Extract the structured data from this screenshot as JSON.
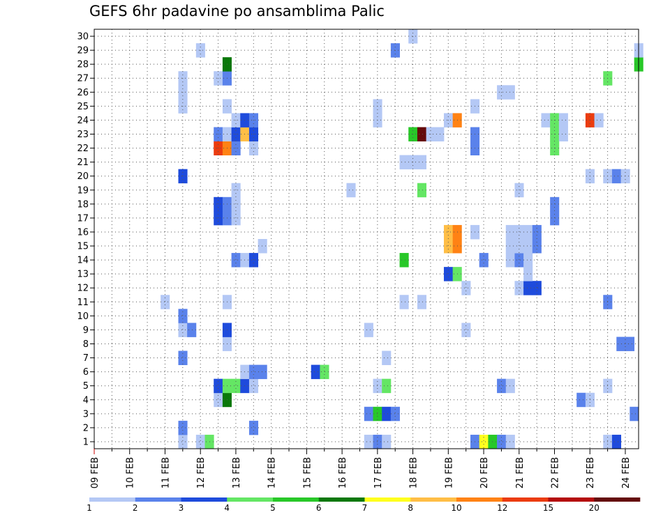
{
  "chart_data": {
    "type": "heatmap",
    "title": "GEFS 6hr padavine po ansamblima Palic",
    "xlabel": "",
    "ylabel": "",
    "x_ticks": [
      "09 FEB",
      "10 FEB",
      "11 FEB",
      "12 FEB",
      "13 FEB",
      "14 FEB",
      "15 FEB",
      "16 FEB",
      "17 FEB",
      "18 FEB",
      "19 FEB",
      "20 FEB",
      "21 FEB",
      "22 FEB",
      "23 FEB",
      "24 FEB"
    ],
    "x_range_days": [
      0,
      15.375
    ],
    "time_step_hours": 6,
    "y_members": [
      1,
      2,
      3,
      4,
      5,
      6,
      7,
      8,
      9,
      10,
      11,
      12,
      13,
      14,
      15,
      16,
      17,
      18,
      19,
      20,
      21,
      22,
      23,
      24,
      25,
      26,
      27,
      28,
      29,
      30
    ],
    "grid": true,
    "legend": {
      "position": "bottom",
      "labels": [
        "1",
        "2",
        "3",
        "4",
        "5",
        "6",
        "7",
        "8",
        "10",
        "12",
        "15",
        "20"
      ],
      "colors": [
        "#b4c8f5",
        "#5a82eb",
        "#1e4bdc",
        "#64e664",
        "#28c828",
        "#0a780a",
        "#ffff1e",
        "#ffbe46",
        "#ff8214",
        "#eb3c0f",
        "#b40a0a",
        "#640a0a"
      ]
    },
    "cells": [
      {
        "member": 1,
        "t": [
          [
            2.5,
            1
          ],
          [
            3,
            1
          ],
          [
            3.25,
            4
          ],
          [
            7.75,
            1
          ],
          [
            8,
            2
          ],
          [
            8.25,
            1
          ],
          [
            10.75,
            2
          ],
          [
            11,
            7
          ],
          [
            11.25,
            5
          ],
          [
            11.5,
            2
          ],
          [
            11.75,
            1
          ],
          [
            14.5,
            1
          ],
          [
            14.75,
            3
          ]
        ]
      },
      {
        "member": 2,
        "t": [
          [
            2.5,
            2
          ],
          [
            4.5,
            2
          ]
        ]
      },
      {
        "member": 3,
        "t": [
          [
            7.75,
            2
          ],
          [
            8,
            5
          ],
          [
            8.25,
            3
          ],
          [
            8.5,
            2
          ],
          [
            15.25,
            2
          ]
        ]
      },
      {
        "member": 4,
        "t": [
          [
            3.5,
            1
          ],
          [
            3.75,
            6
          ],
          [
            13.75,
            2
          ],
          [
            14,
            1
          ]
        ]
      },
      {
        "member": 5,
        "t": [
          [
            3.5,
            3
          ],
          [
            3.75,
            4
          ],
          [
            4,
            4
          ],
          [
            4.25,
            3
          ],
          [
            4.5,
            1
          ],
          [
            8,
            1
          ],
          [
            8.25,
            4
          ],
          [
            11.5,
            2
          ],
          [
            11.75,
            1
          ],
          [
            14.5,
            1
          ]
        ]
      },
      {
        "member": 6,
        "t": [
          [
            4.25,
            1
          ],
          [
            4.5,
            2
          ],
          [
            4.75,
            2
          ],
          [
            6.25,
            3
          ],
          [
            6.5,
            4
          ]
        ]
      },
      {
        "member": 7,
        "t": [
          [
            2.5,
            2
          ],
          [
            8.25,
            1
          ]
        ]
      },
      {
        "member": 8,
        "t": [
          [
            3.75,
            1
          ],
          [
            14.875,
            2
          ],
          [
            15.125,
            2
          ]
        ]
      },
      {
        "member": 9,
        "t": [
          [
            2.5,
            1
          ],
          [
            2.75,
            2
          ],
          [
            3.75,
            3
          ],
          [
            7.75,
            1
          ],
          [
            10.5,
            1
          ]
        ]
      },
      {
        "member": 10,
        "t": [
          [
            2.5,
            2
          ]
        ]
      },
      {
        "member": 11,
        "t": [
          [
            2,
            1
          ],
          [
            3.75,
            1
          ],
          [
            8.75,
            1
          ],
          [
            9.25,
            1
          ],
          [
            14.5,
            2
          ]
        ]
      },
      {
        "member": 12,
        "t": [
          [
            10.5,
            1
          ],
          [
            12,
            1
          ],
          [
            12.25,
            3
          ],
          [
            12.5,
            3
          ]
        ]
      },
      {
        "member": 13,
        "t": [
          [
            10,
            3
          ],
          [
            10.25,
            4
          ],
          [
            12.25,
            1
          ]
        ]
      },
      {
        "member": 14,
        "t": [
          [
            4,
            2
          ],
          [
            4.25,
            1
          ],
          [
            4.5,
            3
          ],
          [
            8.75,
            5
          ],
          [
            11,
            2
          ],
          [
            11.75,
            1
          ],
          [
            12,
            2
          ],
          [
            12.25,
            1
          ]
        ]
      },
      {
        "member": 15,
        "t": [
          [
            4.75,
            1
          ],
          [
            10,
            8
          ],
          [
            10.25,
            9
          ],
          [
            11.75,
            1
          ],
          [
            12,
            1
          ],
          [
            12.25,
            1
          ],
          [
            12.5,
            2
          ]
        ]
      },
      {
        "member": 16,
        "t": [
          [
            10,
            8
          ],
          [
            10.25,
            9
          ],
          [
            10.75,
            1
          ],
          [
            11.75,
            1
          ],
          [
            12,
            1
          ],
          [
            12.25,
            1
          ],
          [
            12.5,
            2
          ]
        ]
      },
      {
        "member": 17,
        "t": [
          [
            3.5,
            3
          ],
          [
            3.75,
            2
          ],
          [
            4,
            1
          ],
          [
            13,
            2
          ]
        ]
      },
      {
        "member": 18,
        "t": [
          [
            3.5,
            3
          ],
          [
            3.75,
            2
          ],
          [
            4,
            1
          ],
          [
            13,
            2
          ]
        ]
      },
      {
        "member": 19,
        "t": [
          [
            4,
            1
          ],
          [
            7.25,
            1
          ],
          [
            9.25,
            4
          ],
          [
            12,
            1
          ]
        ]
      },
      {
        "member": 20,
        "t": [
          [
            2.5,
            3
          ],
          [
            14,
            1
          ],
          [
            14.5,
            1
          ],
          [
            14.75,
            2
          ],
          [
            15,
            1
          ]
        ]
      },
      {
        "member": 21,
        "t": [
          [
            8.75,
            1
          ],
          [
            9,
            1
          ],
          [
            9.25,
            1
          ]
        ]
      },
      {
        "member": 22,
        "t": [
          [
            3.5,
            10
          ],
          [
            3.75,
            9
          ],
          [
            4,
            2
          ],
          [
            4.5,
            1
          ],
          [
            10.75,
            2
          ],
          [
            13,
            4
          ]
        ]
      },
      {
        "member": 23,
        "t": [
          [
            3.5,
            2
          ],
          [
            3.75,
            1
          ],
          [
            4,
            3
          ],
          [
            4.25,
            8
          ],
          [
            4.5,
            3
          ],
          [
            9,
            5
          ],
          [
            9.25,
            12
          ],
          [
            9.5,
            1
          ],
          [
            9.75,
            1
          ],
          [
            10.75,
            2
          ],
          [
            13,
            4
          ],
          [
            13.25,
            1
          ]
        ]
      },
      {
        "member": 24,
        "t": [
          [
            4,
            1
          ],
          [
            4.25,
            3
          ],
          [
            4.5,
            2
          ],
          [
            8,
            1
          ],
          [
            10,
            1
          ],
          [
            10.25,
            9
          ],
          [
            12.75,
            1
          ],
          [
            13,
            4
          ],
          [
            13.25,
            1
          ],
          [
            14,
            10
          ],
          [
            14.25,
            1
          ]
        ]
      },
      {
        "member": 25,
        "t": [
          [
            2.5,
            1
          ],
          [
            3.75,
            1
          ],
          [
            8,
            1
          ],
          [
            10.75,
            1
          ]
        ]
      },
      {
        "member": 26,
        "t": [
          [
            2.5,
            1
          ],
          [
            11.5,
            1
          ],
          [
            11.75,
            1
          ]
        ]
      },
      {
        "member": 27,
        "t": [
          [
            2.5,
            1
          ],
          [
            3.5,
            1
          ],
          [
            3.75,
            2
          ],
          [
            14.5,
            4
          ]
        ]
      },
      {
        "member": 28,
        "t": [
          [
            3.75,
            6
          ],
          [
            15.375,
            5
          ]
        ]
      },
      {
        "member": 29,
        "t": [
          [
            3,
            1
          ],
          [
            8.5,
            2
          ],
          [
            15.375,
            1
          ]
        ]
      },
      {
        "member": 30,
        "t": [
          [
            9,
            1
          ]
        ]
      }
    ]
  }
}
